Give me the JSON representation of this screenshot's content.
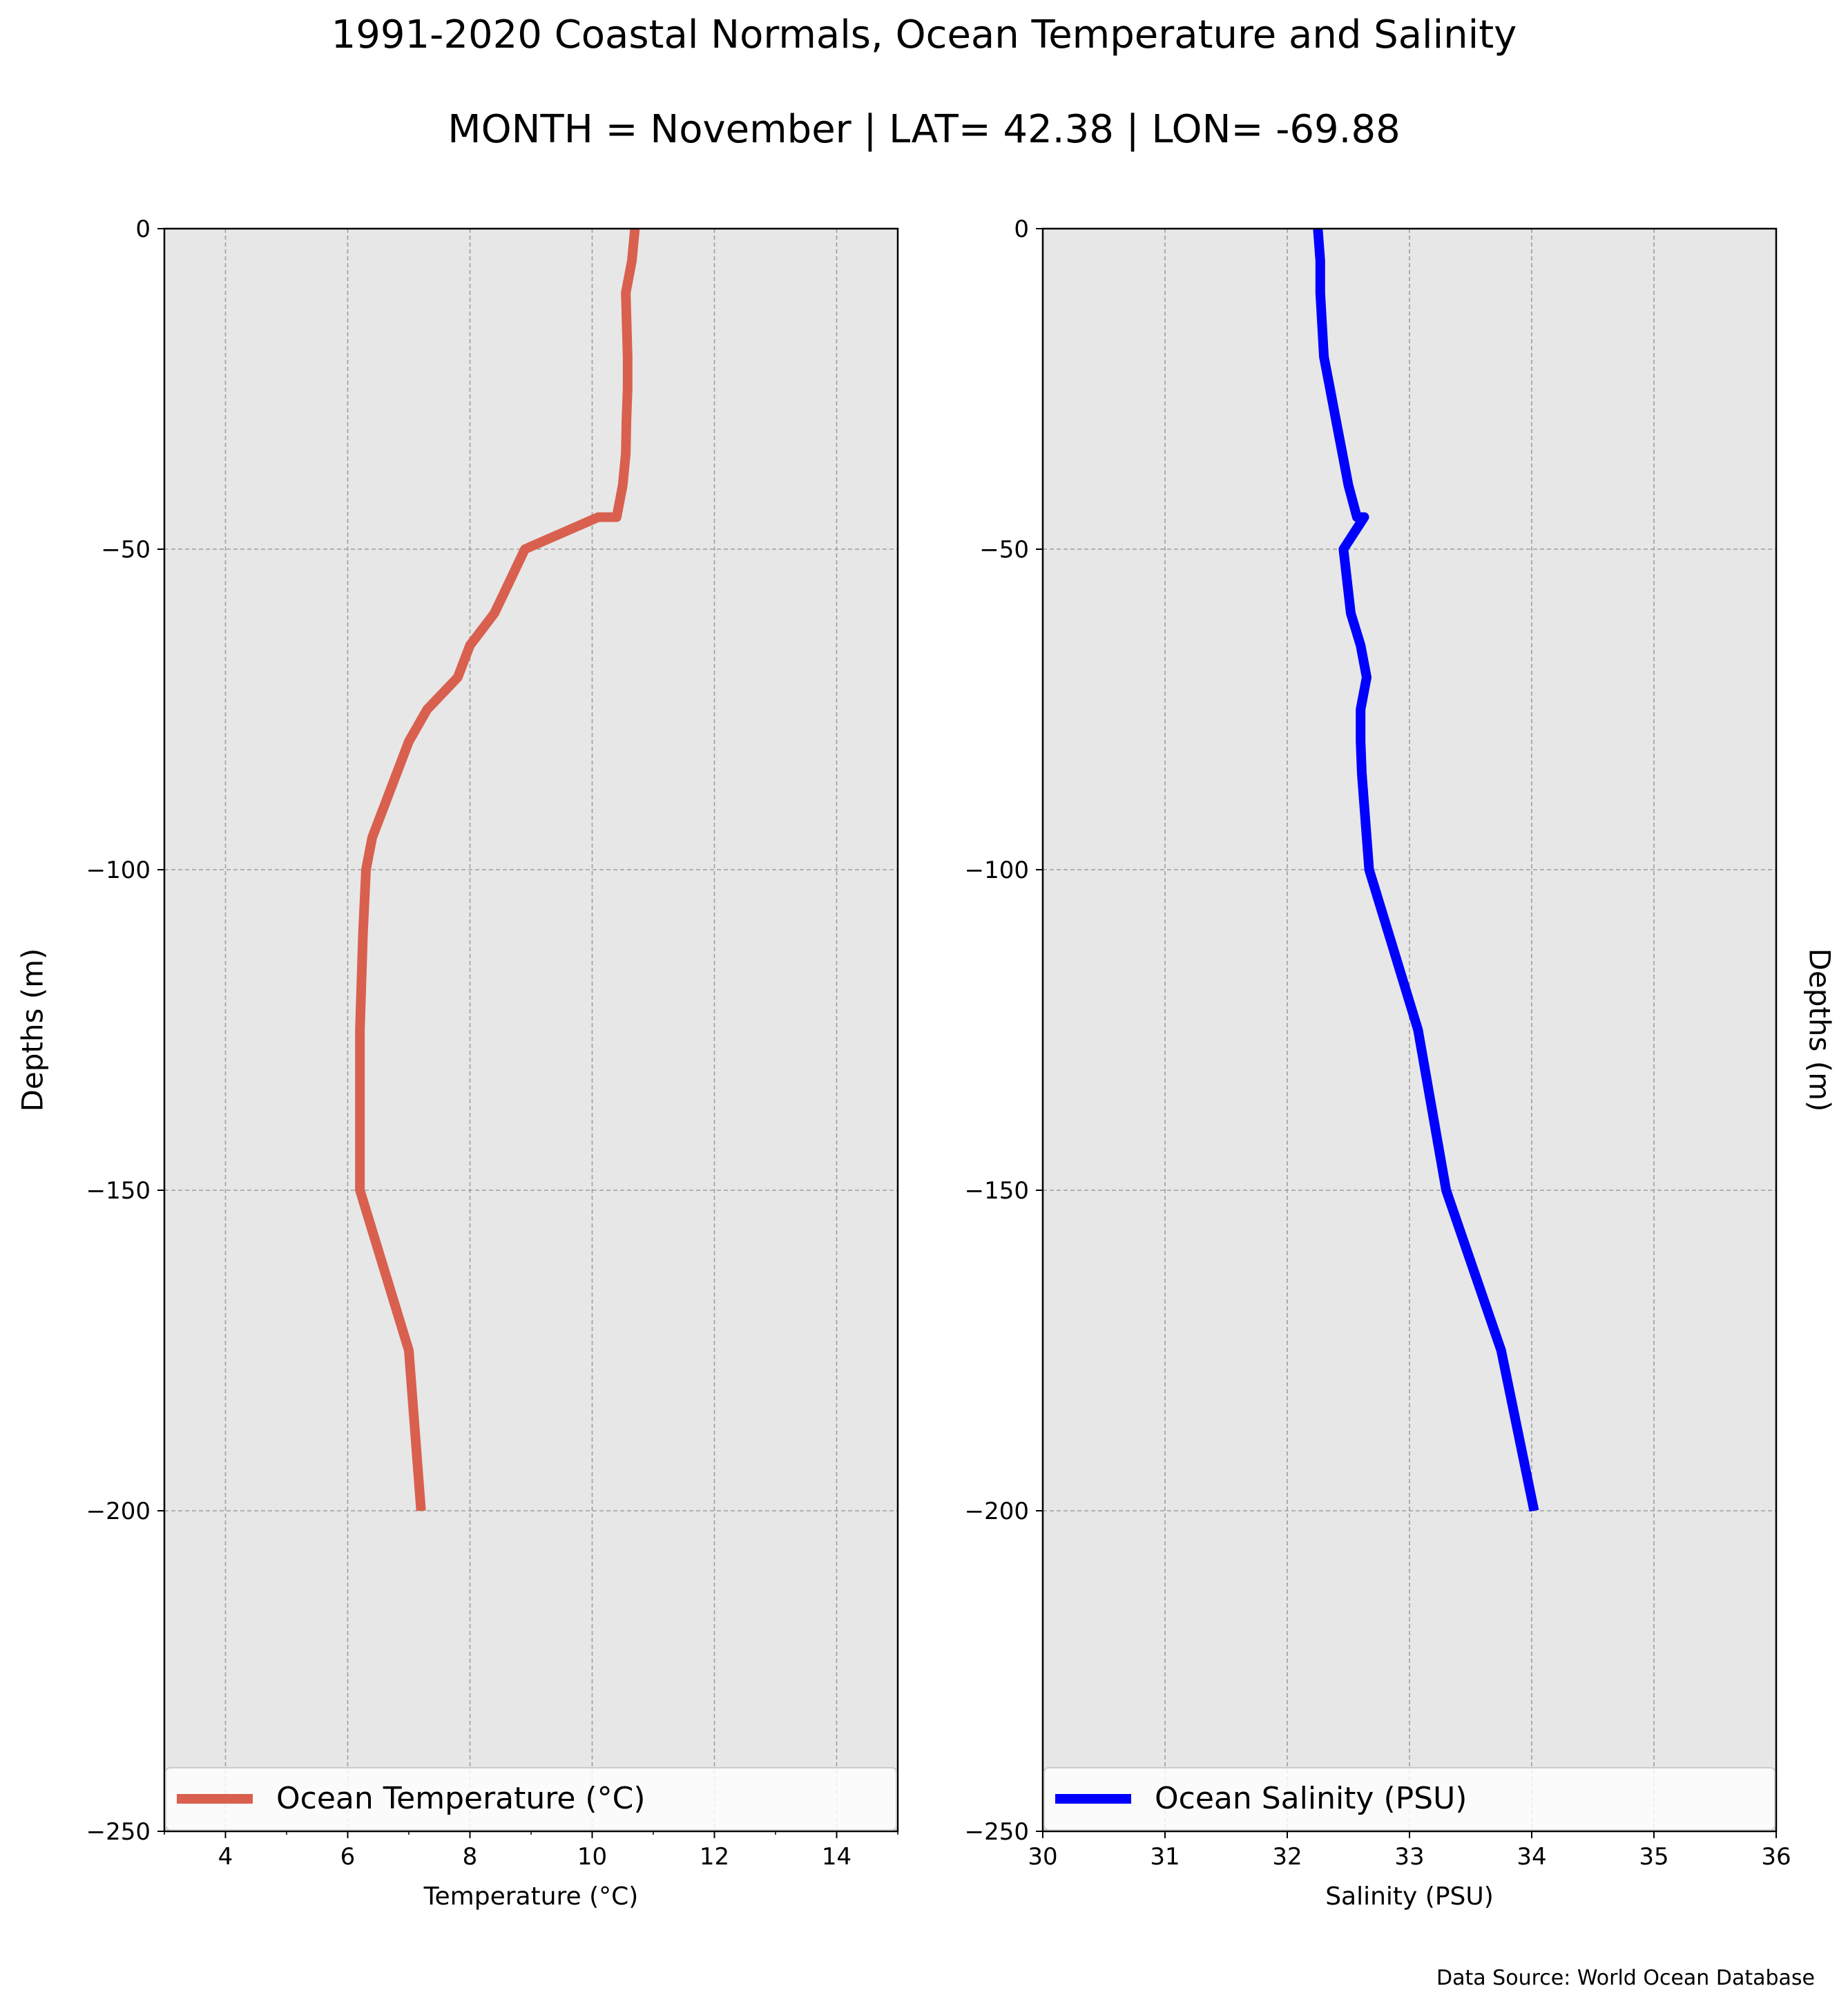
{
  "title": "1991-2020 Coastal Normals, Ocean Temperature and Salinity",
  "subtitle": "MONTH = November | LAT= 42.38 | LON= -69.88",
  "source_note": "Data Source: World Ocean Database",
  "colors": {
    "background": "#ffffff",
    "axes_face": "#e7e7e7",
    "grid": "#9e9e9e",
    "temperature_line": "#d9604e",
    "salinity_line": "#0000ff"
  },
  "chart_data": [
    {
      "type": "line",
      "id": "temperature",
      "xlabel": "Temperature (°C)",
      "ylabel": "Depths (m)",
      "ylabel_side": "left",
      "xlim": [
        3,
        15
      ],
      "ylim": [
        -250,
        0
      ],
      "xticks": [
        4,
        6,
        8,
        10,
        12,
        14
      ],
      "xminor_ticks": [
        3,
        5,
        7,
        9,
        11,
        13,
        15
      ],
      "yticks": [
        0,
        -50,
        -100,
        -150,
        -200,
        -250
      ],
      "ytick_labels": [
        "0",
        "−50",
        "−100",
        "−150",
        "−200",
        "−250"
      ],
      "grid": true,
      "legend_position": "bottom",
      "series": [
        {
          "name": "Ocean Temperature (°C)",
          "color": "#d9604e",
          "x": [
            10.7,
            10.65,
            10.55,
            10.58,
            10.58,
            10.56,
            10.55,
            10.5,
            10.4,
            10.1,
            8.9,
            8.4,
            8.0,
            7.8,
            7.3,
            7.0,
            6.8,
            6.6,
            6.4,
            6.3,
            6.25,
            6.2,
            6.2,
            7.0,
            7.2
          ],
          "y": [
            0,
            -5,
            -10,
            -20,
            -25,
            -30,
            -35,
            -40,
            -45,
            -45,
            -50,
            -60,
            -65,
            -70,
            -75,
            -80,
            -85,
            -90,
            -95,
            -100,
            -110,
            -125,
            -150,
            -175,
            -200
          ]
        }
      ]
    },
    {
      "type": "line",
      "id": "salinity",
      "xlabel": "Salinity (PSU)",
      "ylabel": "Depths (m)",
      "ylabel_side": "right",
      "xlim": [
        30,
        36
      ],
      "ylim": [
        -250,
        0
      ],
      "xticks": [
        30,
        31,
        32,
        33,
        34,
        35,
        36
      ],
      "yticks": [
        0,
        -50,
        -100,
        -150,
        -200,
        -250
      ],
      "ytick_labels": [
        "0",
        "−50",
        "−100",
        "−150",
        "−200",
        "−250"
      ],
      "grid": true,
      "legend_position": "bottom",
      "series": [
        {
          "name": "Ocean Salinity (PSU)",
          "color": "#0000ff",
          "x": [
            32.25,
            32.27,
            32.27,
            32.3,
            32.35,
            32.4,
            32.45,
            32.5,
            32.57,
            32.63,
            32.46,
            32.52,
            32.6,
            32.65,
            32.6,
            32.6,
            32.61,
            32.63,
            32.67,
            33.07,
            33.3,
            33.75,
            34.02
          ],
          "y": [
            0,
            -5,
            -10,
            -20,
            -25,
            -30,
            -35,
            -40,
            -45,
            -45,
            -50,
            -60,
            -65,
            -70,
            -75,
            -80,
            -85,
            -90,
            -100,
            -125,
            -150,
            -175,
            -200
          ]
        }
      ]
    }
  ]
}
